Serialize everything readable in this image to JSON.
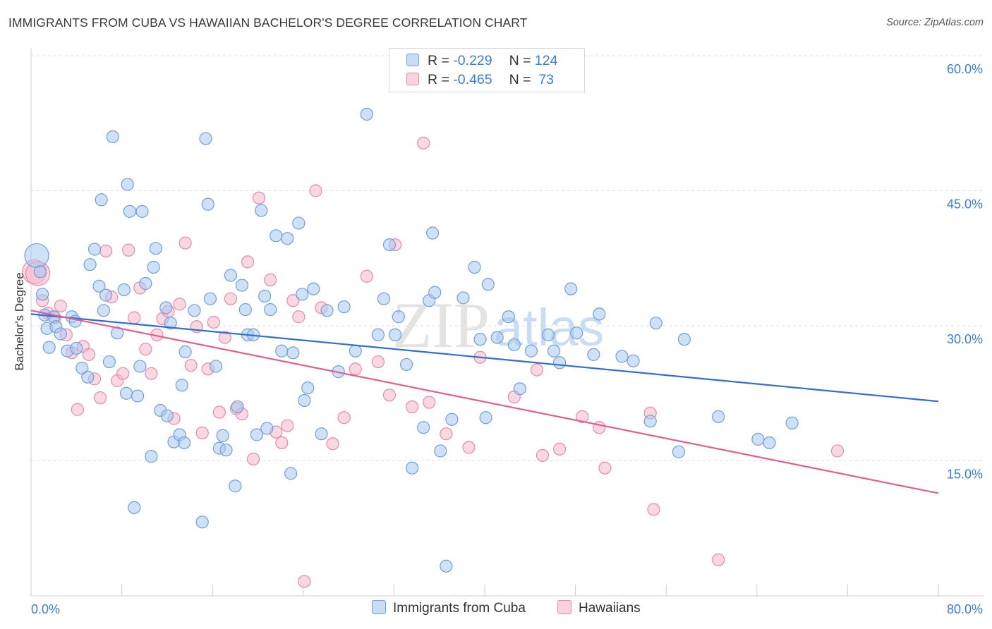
{
  "title": "IMMIGRANTS FROM CUBA VS HAWAIIAN BACHELOR'S DEGREE CORRELATION CHART",
  "source": "Source: ZipAtlas.com",
  "watermark": {
    "zip": "ZIP",
    "atlas": "atlas"
  },
  "colors": {
    "blue_fill": "#a8c8f0",
    "blue_stroke": "#6f9fde",
    "blue_line": "#2f6fd0",
    "pink_fill": "#f6b8cb",
    "pink_stroke": "#e88aa8",
    "pink_line": "#e0608e",
    "axis_value": "#3a7fd5",
    "grid": "#dddddd"
  },
  "legend": {
    "rows": [
      {
        "r_label": "R = ",
        "r_value": "-0.229",
        "n_label": "N = ",
        "n_value": "124",
        "series": "blue"
      },
      {
        "r_label": "R = ",
        "r_value": "-0.465",
        "n_label": "N = ",
        "n_value": " 73",
        "series": "pink"
      }
    ]
  },
  "bottom_legend": [
    {
      "label": "Immigrants from Cuba",
      "series": "blue"
    },
    {
      "label": "Hawaiians",
      "series": "pink"
    }
  ],
  "chart_data": {
    "type": "scatter",
    "title": "IMMIGRANTS FROM CUBA VS HAWAIIAN BACHELOR'S DEGREE CORRELATION CHART",
    "xlabel": "",
    "ylabel": "Bachelor's Degree",
    "xlim": [
      0,
      80
    ],
    "ylim": [
      0,
      60
    ],
    "x_tick_labels": [
      "0.0%",
      "80.0%"
    ],
    "y_ticks": [
      15,
      30,
      45,
      60
    ],
    "y_tick_labels": [
      "15.0%",
      "30.0%",
      "45.0%",
      "60.0%"
    ],
    "grid": "horizontal dashed",
    "legend_position": "top-center",
    "series": [
      {
        "name": "Immigrants from Cuba",
        "color": "#a8c8f0",
        "trend": {
          "x": [
            0,
            80
          ],
          "y": [
            31.3,
            21.6
          ]
        },
        "points": [
          [
            0.5,
            37.8
          ],
          [
            0.8,
            36
          ],
          [
            1,
            33.5
          ],
          [
            1.2,
            31.2
          ],
          [
            1.4,
            29.7
          ],
          [
            1.6,
            27.6
          ],
          [
            2,
            31
          ],
          [
            2.2,
            29.9
          ],
          [
            2.6,
            29.1
          ],
          [
            3.2,
            27.2
          ],
          [
            3.6,
            31
          ],
          [
            3.9,
            30.5
          ],
          [
            4,
            27.5
          ],
          [
            4.5,
            25.3
          ],
          [
            5,
            24.3
          ],
          [
            5.2,
            36.8
          ],
          [
            5.6,
            38.5
          ],
          [
            6,
            34.4
          ],
          [
            6.2,
            44
          ],
          [
            6.4,
            31.7
          ],
          [
            6.6,
            33.4
          ],
          [
            6.9,
            26
          ],
          [
            7.2,
            51
          ],
          [
            7.6,
            29.2
          ],
          [
            8.2,
            34
          ],
          [
            8.4,
            22.5
          ],
          [
            8.5,
            45.7
          ],
          [
            8.7,
            42.7
          ],
          [
            9.1,
            9.8
          ],
          [
            9.4,
            22.2
          ],
          [
            9.6,
            25.5
          ],
          [
            9.8,
            42.7
          ],
          [
            10.1,
            34.7
          ],
          [
            10.6,
            15.5
          ],
          [
            10.8,
            36.5
          ],
          [
            11,
            38.6
          ],
          [
            11.4,
            20.6
          ],
          [
            11.9,
            32
          ],
          [
            12,
            20
          ],
          [
            12.3,
            30.3
          ],
          [
            12.6,
            17.1
          ],
          [
            13.1,
            17.9
          ],
          [
            13.3,
            23.4
          ],
          [
            13.5,
            17
          ],
          [
            13.6,
            27.1
          ],
          [
            14.4,
            31.7
          ],
          [
            15.1,
            8.2
          ],
          [
            15.4,
            50.8
          ],
          [
            15.6,
            43.5
          ],
          [
            15.8,
            33
          ],
          [
            16.3,
            25.5
          ],
          [
            16.6,
            16.4
          ],
          [
            16.9,
            17.8
          ],
          [
            17.2,
            16.2
          ],
          [
            17.6,
            35.6
          ],
          [
            18,
            12.2
          ],
          [
            18.2,
            21
          ],
          [
            18.6,
            34.5
          ],
          [
            18.9,
            31.8
          ],
          [
            19.1,
            29
          ],
          [
            19.6,
            29
          ],
          [
            19.9,
            17.9
          ],
          [
            20.3,
            42.8
          ],
          [
            20.6,
            33.3
          ],
          [
            20.8,
            18.6
          ],
          [
            21.1,
            31.8
          ],
          [
            21.6,
            40
          ],
          [
            22.1,
            27.2
          ],
          [
            22.6,
            39.7
          ],
          [
            22.9,
            13.6
          ],
          [
            23.1,
            27
          ],
          [
            23.6,
            41.4
          ],
          [
            23.9,
            33.5
          ],
          [
            24.1,
            21.7
          ],
          [
            24.4,
            23.1
          ],
          [
            24.9,
            34.1
          ],
          [
            25.6,
            18
          ],
          [
            26.1,
            31.7
          ],
          [
            27.1,
            24.9
          ],
          [
            27.6,
            32.1
          ],
          [
            28.6,
            27.2
          ],
          [
            29.6,
            53.5
          ],
          [
            30.6,
            29
          ],
          [
            31.1,
            33
          ],
          [
            31.6,
            39
          ],
          [
            32.1,
            29
          ],
          [
            32.4,
            31
          ],
          [
            33.1,
            25.7
          ],
          [
            33.6,
            14.2
          ],
          [
            34.6,
            18.7
          ],
          [
            35.1,
            32.8
          ],
          [
            35.4,
            40.3
          ],
          [
            35.6,
            33.7
          ],
          [
            36.1,
            16.1
          ],
          [
            36.6,
            3.3
          ],
          [
            37.1,
            19.6
          ],
          [
            38.1,
            33.1
          ],
          [
            39.1,
            36.5
          ],
          [
            39.6,
            28.5
          ],
          [
            40.1,
            19.8
          ],
          [
            40.3,
            34.6
          ],
          [
            41.1,
            28.7
          ],
          [
            42.1,
            31
          ],
          [
            42.6,
            27.9
          ],
          [
            43.1,
            23
          ],
          [
            44.1,
            27.2
          ],
          [
            45.6,
            29
          ],
          [
            46.1,
            27.2
          ],
          [
            46.6,
            25.9
          ],
          [
            47.6,
            34.1
          ],
          [
            48.1,
            29.2
          ],
          [
            49.6,
            26.8
          ],
          [
            50.1,
            31.3
          ],
          [
            52.1,
            26.6
          ],
          [
            53.1,
            26.1
          ],
          [
            54.6,
            19.4
          ],
          [
            55.1,
            30.3
          ],
          [
            57.1,
            16
          ],
          [
            57.6,
            28.5
          ],
          [
            60.6,
            19.9
          ],
          [
            64.1,
            17.4
          ],
          [
            65.1,
            17
          ],
          [
            67.1,
            19.2
          ]
        ]
      },
      {
        "name": "Hawaiians",
        "color": "#f6b8cb",
        "trend": {
          "x": [
            0,
            80
          ],
          "y": [
            31.7,
            11.4
          ]
        },
        "points": [
          [
            0.3,
            36
          ],
          [
            0.6,
            35.8
          ],
          [
            1,
            32.8
          ],
          [
            1.5,
            31.4
          ],
          [
            2.1,
            30.9
          ],
          [
            2.6,
            32.2
          ],
          [
            3.1,
            29
          ],
          [
            3.6,
            27
          ],
          [
            4.1,
            20.7
          ],
          [
            4.6,
            27.7
          ],
          [
            5.1,
            26.8
          ],
          [
            5.6,
            24.1
          ],
          [
            6.1,
            22
          ],
          [
            6.6,
            38.3
          ],
          [
            7.1,
            33.2
          ],
          [
            7.6,
            23.9
          ],
          [
            8.1,
            24.7
          ],
          [
            8.6,
            38.4
          ],
          [
            9.1,
            30.9
          ],
          [
            9.6,
            34.2
          ],
          [
            10.1,
            27.4
          ],
          [
            10.6,
            24.7
          ],
          [
            11.1,
            29
          ],
          [
            11.6,
            30.8
          ],
          [
            12.1,
            31.6
          ],
          [
            12.6,
            19.7
          ],
          [
            13.1,
            32.4
          ],
          [
            13.6,
            39.2
          ],
          [
            14.1,
            25.6
          ],
          [
            14.6,
            29.9
          ],
          [
            15.1,
            18.1
          ],
          [
            15.6,
            25.2
          ],
          [
            16.1,
            30.4
          ],
          [
            16.6,
            20.4
          ],
          [
            17.1,
            28.7
          ],
          [
            17.6,
            33
          ],
          [
            18.1,
            20.8
          ],
          [
            18.6,
            20.2
          ],
          [
            19.1,
            37.1
          ],
          [
            19.6,
            15.2
          ],
          [
            20.1,
            44.2
          ],
          [
            21.1,
            35.1
          ],
          [
            21.6,
            18.2
          ],
          [
            22.1,
            17
          ],
          [
            22.6,
            18.9
          ],
          [
            23.1,
            32.8
          ],
          [
            23.6,
            31
          ],
          [
            24.1,
            1.6
          ],
          [
            25.1,
            45
          ],
          [
            25.6,
            32
          ],
          [
            26.6,
            16.9
          ],
          [
            27.6,
            19.8
          ],
          [
            28.6,
            25.2
          ],
          [
            29.6,
            35.5
          ],
          [
            30.6,
            26
          ],
          [
            31.6,
            22.3
          ],
          [
            32.1,
            39
          ],
          [
            33.6,
            21
          ],
          [
            34.6,
            50.3
          ],
          [
            35.1,
            21.5
          ],
          [
            36.6,
            18
          ],
          [
            38.6,
            16.5
          ],
          [
            39.6,
            26.5
          ],
          [
            42.6,
            22.1
          ],
          [
            44.6,
            25.1
          ],
          [
            45.1,
            15.6
          ],
          [
            46.6,
            16.3
          ],
          [
            48.6,
            19.9
          ],
          [
            50.1,
            18.7
          ],
          [
            50.6,
            14.2
          ],
          [
            54.6,
            20.3
          ],
          [
            54.9,
            9.6
          ],
          [
            60.6,
            4
          ],
          [
            71.1,
            16.1
          ]
        ]
      }
    ]
  }
}
